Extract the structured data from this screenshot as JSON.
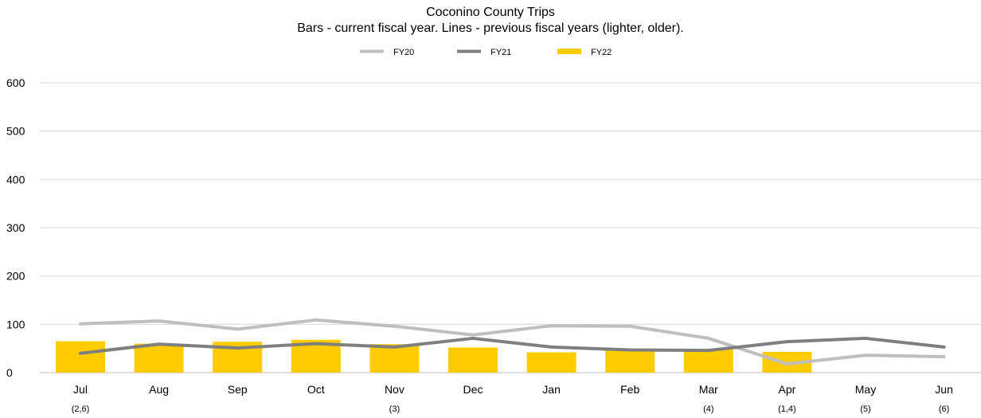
{
  "chart_data": {
    "type": "bar",
    "title": "Coconino County Trips",
    "subtitle": "Bars - current fiscal year. Lines - previous fiscal years (lighter, older).",
    "categories": [
      "Jul",
      "Aug",
      "Sep",
      "Oct",
      "Nov",
      "Dec",
      "Jan",
      "Feb",
      "Mar",
      "Apr",
      "May",
      "Jun"
    ],
    "category_notes": [
      "(2,6)",
      "",
      "",
      "",
      "(3)",
      "",
      "",
      "",
      "(4)",
      "(1,4)",
      "(5)",
      "(6)"
    ],
    "ylim": [
      0,
      600
    ],
    "yticks": [
      0,
      100,
      200,
      300,
      400,
      500,
      600
    ],
    "grid": true,
    "legend_position": "top-center",
    "series": [
      {
        "name": "FY20",
        "type": "line",
        "color": "#bfbfbf",
        "values": [
          101,
          107,
          90,
          109,
          96,
          78,
          97,
          96,
          71,
          18,
          36,
          33
        ]
      },
      {
        "name": "FY21",
        "type": "line",
        "color": "#7f7f7f",
        "values": [
          40,
          59,
          51,
          60,
          53,
          71,
          53,
          47,
          46,
          64,
          71,
          53
        ]
      },
      {
        "name": "FY22",
        "type": "bar",
        "color": "#ffcc00",
        "values": [
          65,
          60,
          64,
          68,
          59,
          52,
          42,
          48,
          48,
          43,
          null,
          null
        ]
      }
    ]
  }
}
